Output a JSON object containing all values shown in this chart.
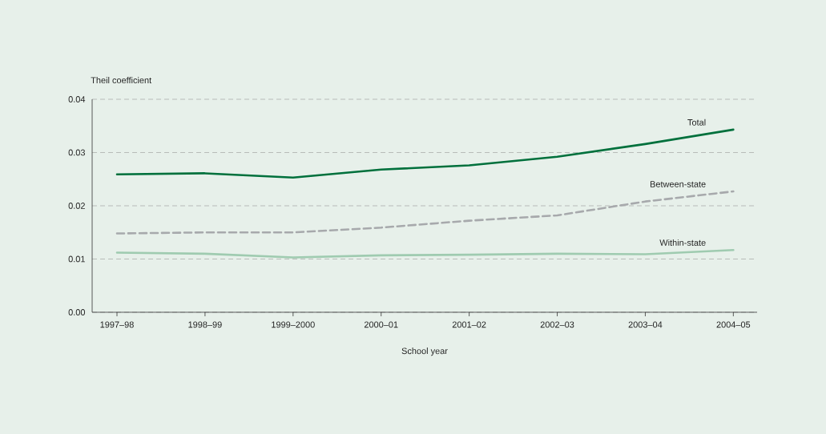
{
  "chart_data": {
    "type": "line",
    "ylabel": "Theil coefficient",
    "xlabel": "School year",
    "categories": [
      "1997–98",
      "1998–99",
      "1999–2000",
      "2000–01",
      "2001–02",
      "2002–03",
      "2003–04",
      "2004–05"
    ],
    "series": [
      {
        "name": "Total",
        "color": "#00703c",
        "line_style": "solid",
        "values": [
          0.0259,
          0.0261,
          0.0253,
          0.0268,
          0.0276,
          0.0292,
          0.0316,
          0.0343
        ]
      },
      {
        "name": "Between-state",
        "color": "#a7a9ac",
        "line_style": "dashed",
        "values": [
          0.0148,
          0.015,
          0.015,
          0.0159,
          0.0172,
          0.0182,
          0.0208,
          0.0227
        ]
      },
      {
        "name": "Within-state",
        "color": "#9fcbb0",
        "line_style": "solid",
        "values": [
          0.0112,
          0.011,
          0.0103,
          0.0107,
          0.0108,
          0.011,
          0.0109,
          0.0117
        ]
      }
    ],
    "ylim": [
      0,
      0.04
    ],
    "yticks": [
      {
        "value": 0,
        "label": "0.00"
      },
      {
        "value": 0.01,
        "label": "0.01"
      },
      {
        "value": 0.02,
        "label": "0.02"
      },
      {
        "value": 0.03,
        "label": "0.03"
      },
      {
        "value": 0.04,
        "label": "0.04"
      }
    ],
    "grid": "y",
    "legend": false,
    "marker": "none"
  }
}
